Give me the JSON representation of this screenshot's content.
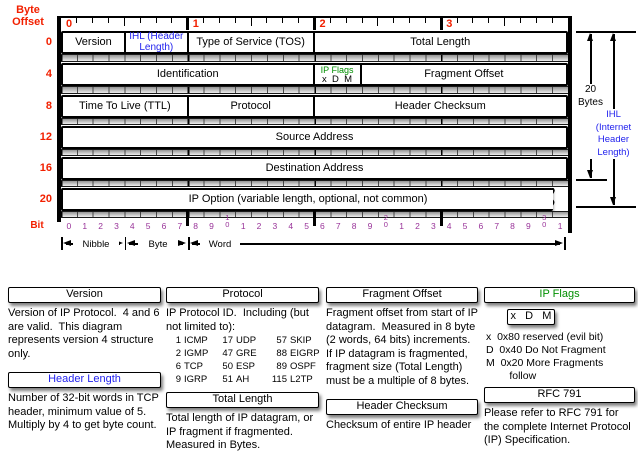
{
  "colors": {
    "red": "#f22000",
    "purple": "#993399",
    "blue": "#2222ee",
    "green": "#008f00"
  },
  "diagram": {
    "byte_offset_label_line1": "Byte",
    "byte_offset_label_line2": "Offset",
    "bit_label": "Bit",
    "top_ruler_numbers": [
      "0",
      "1",
      "2",
      "3"
    ],
    "rows": [
      {
        "offset": "0",
        "cells": [
          {
            "label": "Version",
            "bits": 4
          },
          {
            "label": "IHL (Header Length)",
            "bits": 4,
            "style": "blue"
          },
          {
            "label": "Type of Service (TOS)",
            "bits": 8
          },
          {
            "label": "Total Length",
            "bits": 16
          }
        ]
      },
      {
        "offset": "4",
        "cells": [
          {
            "label": "Identification",
            "bits": 16
          },
          {
            "label": "IP Flags",
            "label2": "x  D  M",
            "bits": 3,
            "style": "flags"
          },
          {
            "label": "Fragment Offset",
            "bits": 13
          }
        ]
      },
      {
        "offset": "8",
        "cells": [
          {
            "label": "Time To Live (TTL)",
            "bits": 8
          },
          {
            "label": "Protocol",
            "bits": 8
          },
          {
            "label": "Header Checksum",
            "bits": 16
          }
        ]
      },
      {
        "offset": "12",
        "cells": [
          {
            "label": "Source Address",
            "bits": 32
          }
        ]
      },
      {
        "offset": "16",
        "cells": [
          {
            "label": "Destination Address",
            "bits": 32
          }
        ]
      },
      {
        "offset": "20",
        "wavy": true,
        "cells": [
          {
            "label": "IP Option (variable length, optional, not common)",
            "bits": 32
          }
        ]
      }
    ],
    "bit_numbers": [
      "0",
      "1",
      "2",
      "3",
      "4",
      "5",
      "6",
      "7",
      "8",
      "9",
      "10",
      "1",
      "2",
      "3",
      "4",
      "5",
      "6",
      "7",
      "8",
      "9",
      "20",
      "1",
      "2",
      "3",
      "4",
      "5",
      "6",
      "7",
      "8",
      "9",
      "30",
      "1"
    ],
    "scale": {
      "nibble": "Nibble",
      "byte": "Byte",
      "word": "Word"
    },
    "right": {
      "bytes_line1": "20",
      "bytes_line2": "Bytes",
      "ihl_lines": [
        "IHL",
        "(Internet",
        "Header",
        "Length)"
      ]
    }
  },
  "notes": {
    "col1": {
      "s1_title": "Version",
      "s1_body": "Version of IP Protocol.  4 and 6 are valid.  This diagram represents version 4 structure only.",
      "s2_title": "Header Length",
      "s2_body": "Number of 32-bit words in TCP header, minimum value of 5.  Multiply by 4 to get byte count."
    },
    "col2": {
      "s1_title": "Protocol",
      "s1_body": "IP Protocol ID.  Including (but not limited to):",
      "protocol_table": [
        [
          "1",
          "ICMP",
          "17",
          "UDP",
          "57",
          "SKIP"
        ],
        [
          "2",
          "IGMP",
          "47",
          "GRE",
          "88",
          "EIGRP"
        ],
        [
          "6",
          "TCP",
          "50",
          "ESP",
          "89",
          "OSPF"
        ],
        [
          "9",
          "IGRP",
          "51",
          "AH",
          "115",
          "L2TP"
        ]
      ],
      "s2_title": "Total Length",
      "s2_body": "Total length of IP datagram, or IP fragment if fragmented. Measured in Bytes."
    },
    "col3": {
      "s1_title": "Fragment Offset",
      "s1_body": "Fragment offset from start of IP datagram.  Measured in 8 byte (2 words, 64 bits) increments.  If IP datagram is fragmented, fragment size (Total Length) must be a multiple of 8 bytes.",
      "s2_title": "Header Checksum",
      "s2_body": "Checksum of entire IP header"
    },
    "col4": {
      "s1_title": "IP Flags",
      "flags_box": "x   D   M",
      "flag_lines": [
        "x  0x80 reserved (evil bit)",
        "D  0x40 Do Not Fragment",
        "M  0x20 More Fragments",
        "        follow"
      ],
      "s2_title": "RFC 791",
      "s2_body": "Please refer to RFC 791 for the complete Internet Protocol (IP) Specification."
    }
  }
}
